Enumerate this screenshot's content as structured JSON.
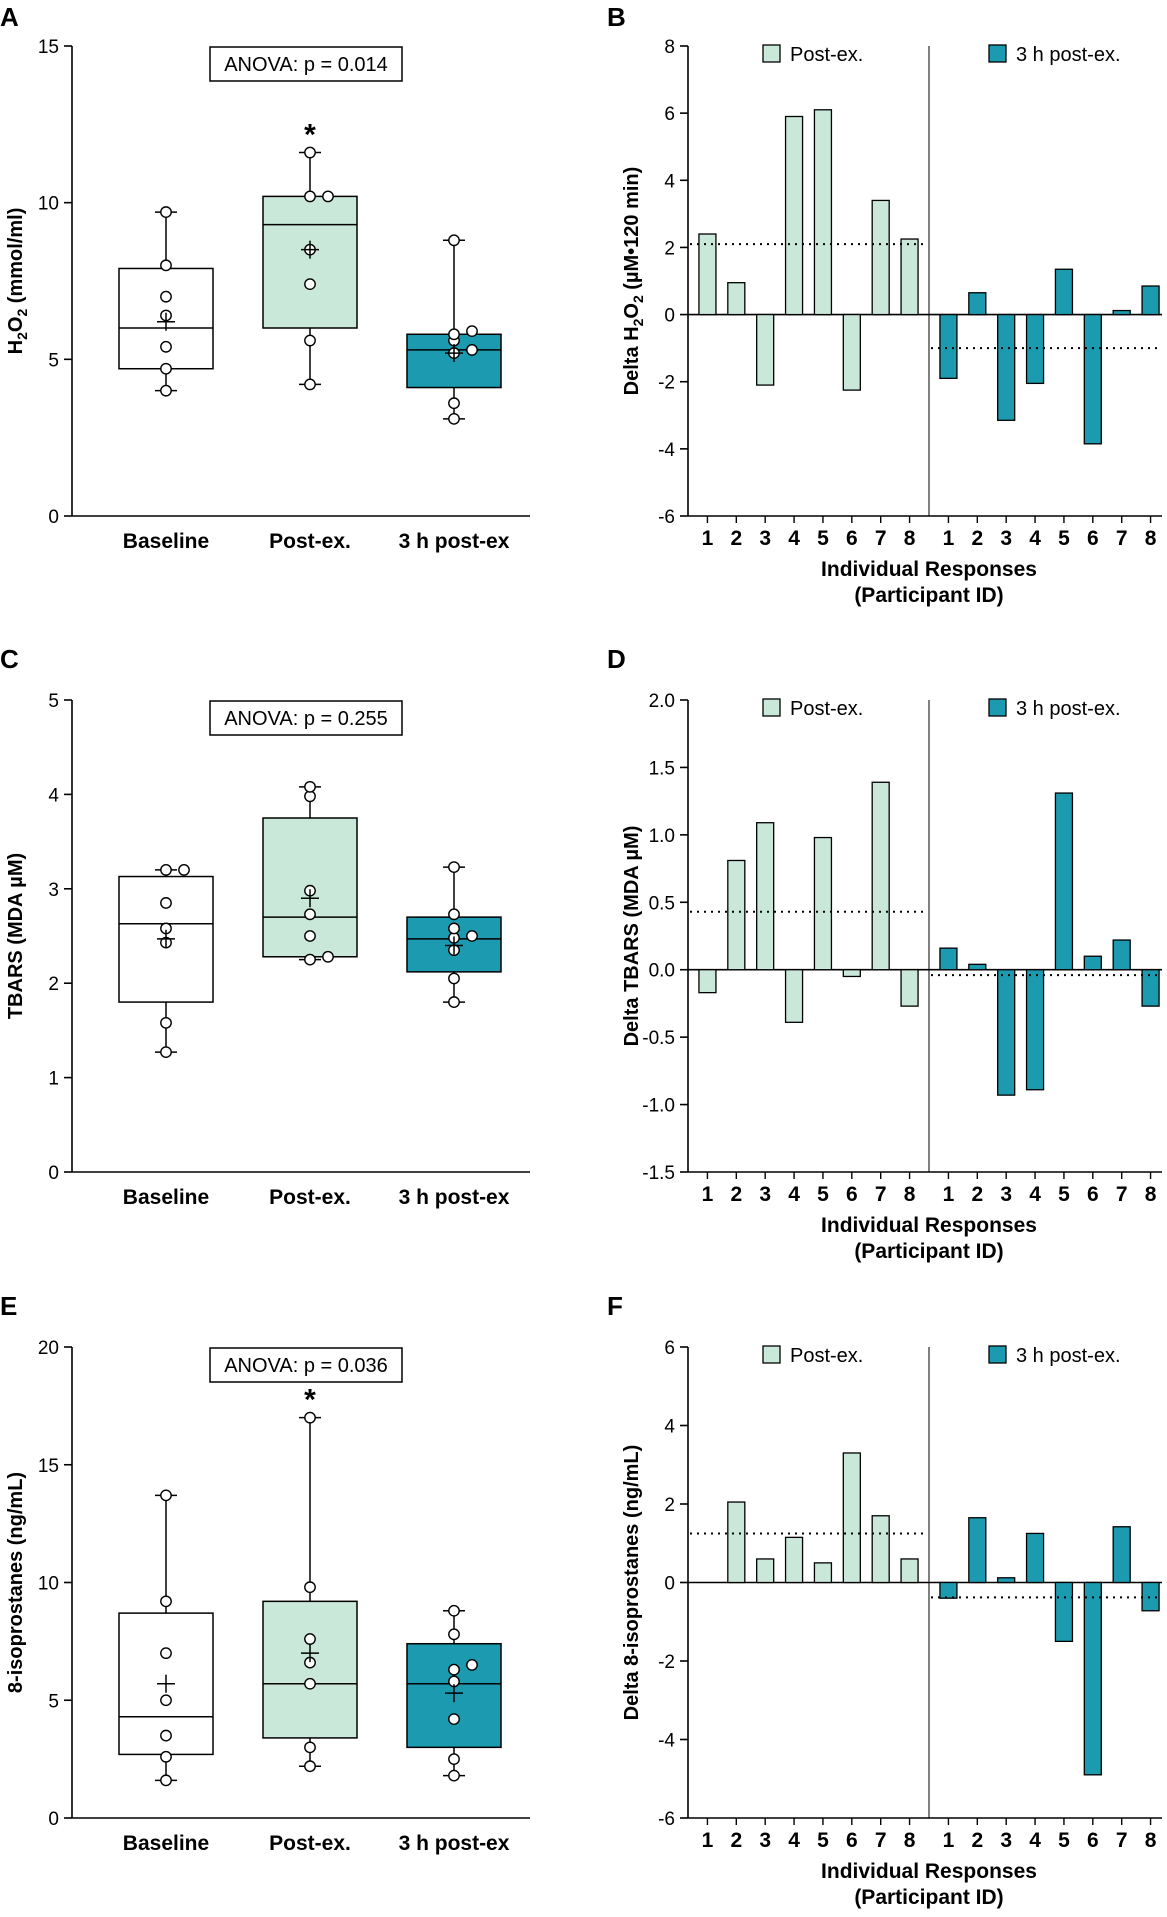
{
  "colors": {
    "baseline": "#ffffff",
    "post": "#c9e8da",
    "threeh": "#1c9bb0",
    "stroke": "#000000"
  },
  "chart_data": [
    {
      "panel": "A",
      "type": "box",
      "ylabel_main": "H",
      "ylabel_sub": "2",
      "ylabel_mid": "O",
      "ylabel_sub2": "2",
      "ylabel_rest": " (mmol/ml)",
      "ylim": [
        0,
        15
      ],
      "yticks": [
        0,
        5,
        10,
        15
      ],
      "annotation": "ANOVA: p = 0.014",
      "significance": [
        {
          "group": "Post-ex.",
          "label": "*"
        }
      ],
      "categories": [
        "Baseline",
        "Post-ex.",
        "3 h post-ex"
      ],
      "boxes": [
        {
          "min": 4.0,
          "q1": 4.7,
          "median": 6.0,
          "q3": 7.9,
          "max": 9.7,
          "mean": 6.2,
          "points": [
            4.0,
            4.7,
            5.4,
            6.4,
            7.0,
            8.0,
            9.7
          ]
        },
        {
          "min": 4.2,
          "q1": 6.0,
          "median": 9.3,
          "q3": 10.2,
          "max": 11.6,
          "mean": 8.5,
          "points": [
            4.2,
            5.6,
            7.4,
            8.5,
            10.2,
            10.2,
            11.6
          ]
        },
        {
          "min": 3.1,
          "q1": 4.1,
          "median": 5.3,
          "q3": 5.8,
          "max": 8.8,
          "mean": 5.2,
          "points": [
            3.1,
            3.6,
            5.2,
            5.3,
            5.6,
            5.8,
            5.9,
            8.8
          ]
        }
      ]
    },
    {
      "panel": "B",
      "type": "bar",
      "ylabel_pre": "Delta H",
      "ylabel_sub": "2",
      "ylabel_mid": "O",
      "ylabel_sub2": "2",
      "ylabel_rest": " (µM•120 min)",
      "xlabel_line1": "Individual Responses",
      "xlabel_line2": "(Participant ID)",
      "ylim": [
        -6,
        8
      ],
      "yticks": [
        -6,
        -4,
        -2,
        0,
        2,
        4,
        6,
        8
      ],
      "ytick_labels": [
        "-6",
        "-4",
        "-2",
        "0",
        "2",
        "4",
        "6",
        "8"
      ],
      "categories": [
        "1",
        "2",
        "3",
        "4",
        "5",
        "6",
        "7",
        "8"
      ],
      "series": [
        {
          "name": "Post-ex.",
          "values": [
            2.4,
            0.95,
            -2.1,
            5.9,
            6.1,
            -2.25,
            3.4,
            2.25
          ],
          "mean": 2.1
        },
        {
          "name": "3 h post-ex.",
          "values": [
            -1.9,
            0.65,
            -3.15,
            -2.05,
            1.35,
            -3.85,
            0.12,
            0.85
          ],
          "mean": -1.0
        }
      ]
    },
    {
      "panel": "C",
      "type": "box",
      "ylabel": "TBARS (MDA µM)",
      "ylim": [
        0,
        5
      ],
      "yticks": [
        0,
        1,
        2,
        3,
        4,
        5
      ],
      "annotation": "ANOVA: p = 0.255",
      "significance": [],
      "categories": [
        "Baseline",
        "Post-ex.",
        "3 h post-ex"
      ],
      "boxes": [
        {
          "min": 1.27,
          "q1": 1.8,
          "median": 2.63,
          "q3": 3.13,
          "max": 3.2,
          "mean": 2.47,
          "points": [
            1.27,
            1.58,
            2.43,
            2.58,
            2.85,
            3.2,
            3.2
          ]
        },
        {
          "min": 2.25,
          "q1": 2.28,
          "median": 2.7,
          "q3": 3.75,
          "max": 4.08,
          "mean": 2.9,
          "points": [
            2.25,
            2.28,
            2.5,
            2.73,
            2.98,
            3.98,
            4.08
          ]
        },
        {
          "min": 1.8,
          "q1": 2.12,
          "median": 2.47,
          "q3": 2.7,
          "max": 3.23,
          "mean": 2.4,
          "points": [
            1.8,
            2.05,
            2.35,
            2.48,
            2.5,
            2.58,
            2.73,
            3.23
          ]
        }
      ]
    },
    {
      "panel": "D",
      "type": "bar",
      "ylabel": "Delta TBARS (MDA µM)",
      "xlabel_line1": "Individual Responses",
      "xlabel_line2": "(Participant ID)",
      "ylim": [
        -1.5,
        2.0
      ],
      "yticks": [
        -1.5,
        -1.0,
        -0.5,
        0.0,
        0.5,
        1.0,
        1.5,
        2.0
      ],
      "ytick_labels": [
        "-1.5",
        "-1.0",
        "-0.5",
        "0.0",
        "0.5",
        "1.0",
        "1.5",
        "2.0"
      ],
      "categories": [
        "1",
        "2",
        "3",
        "4",
        "5",
        "6",
        "7",
        "8"
      ],
      "series": [
        {
          "name": "Post-ex.",
          "values": [
            -0.17,
            0.81,
            1.09,
            -0.39,
            0.98,
            -0.05,
            1.39,
            -0.27
          ],
          "mean": 0.43
        },
        {
          "name": "3 h post-ex.",
          "values": [
            0.16,
            0.04,
            -0.93,
            -0.89,
            1.31,
            0.1,
            0.22,
            -0.27
          ],
          "mean": -0.04
        }
      ]
    },
    {
      "panel": "E",
      "type": "box",
      "ylabel": "8-isoprostanes (ng/mL)",
      "ylim": [
        0,
        20
      ],
      "yticks": [
        0,
        5,
        10,
        15,
        20
      ],
      "annotation": "ANOVA: p = 0.036",
      "significance": [
        {
          "group": "Post-ex.",
          "label": "*"
        }
      ],
      "categories": [
        "Baseline",
        "Post-ex.",
        "3 h post-ex"
      ],
      "boxes": [
        {
          "min": 1.6,
          "q1": 2.7,
          "median": 4.3,
          "q3": 8.7,
          "max": 13.7,
          "mean": 5.7,
          "points": [
            1.6,
            2.6,
            3.5,
            5.0,
            7.0,
            9.2,
            13.7
          ]
        },
        {
          "min": 2.2,
          "q1": 3.4,
          "median": 5.7,
          "q3": 9.2,
          "max": 17.0,
          "mean": 7.0,
          "points": [
            2.2,
            3.0,
            5.7,
            6.6,
            7.6,
            9.8,
            17.0
          ]
        },
        {
          "min": 1.8,
          "q1": 3.0,
          "median": 5.7,
          "q3": 7.4,
          "max": 8.8,
          "mean": 5.3,
          "points": [
            1.8,
            2.5,
            4.2,
            5.8,
            6.3,
            6.5,
            7.8,
            8.8
          ]
        }
      ]
    },
    {
      "panel": "F",
      "type": "bar",
      "ylabel": "Delta 8-isoprostanes (ng/mL)",
      "xlabel_line1": "Individual Responses",
      "xlabel_line2": "(Participant ID)",
      "ylim": [
        -6,
        6
      ],
      "yticks": [
        -6,
        -4,
        -2,
        0,
        2,
        4,
        6
      ],
      "ytick_labels": [
        "-6",
        "-4",
        "-2",
        "0",
        "2",
        "4",
        "6"
      ],
      "categories": [
        "1",
        "2",
        "3",
        "4",
        "5",
        "6",
        "7",
        "8"
      ],
      "series": [
        {
          "name": "Post-ex.",
          "values": [
            0.0,
            2.05,
            0.6,
            1.15,
            0.5,
            3.3,
            1.7,
            0.6
          ],
          "mean": 1.25
        },
        {
          "name": "3 h post-ex.",
          "values": [
            -0.4,
            1.65,
            0.12,
            1.25,
            -1.5,
            -4.9,
            1.42,
            -0.72
          ],
          "mean": -0.38
        }
      ]
    }
  ]
}
